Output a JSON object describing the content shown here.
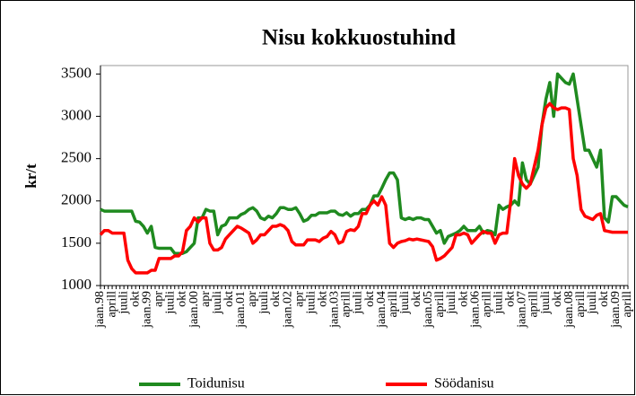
{
  "chart_data": {
    "type": "line",
    "title": "Nisu kokkuostuhind",
    "y_label": "kr/t",
    "categories": [
      "jaan.98",
      null,
      null,
      "aprill",
      null,
      null,
      "juuli",
      null,
      null,
      "okt",
      null,
      null,
      "jaan.99",
      null,
      null,
      "apr",
      null,
      null,
      "juuli",
      null,
      null,
      "okt",
      null,
      null,
      "jaan.00",
      null,
      null,
      "apr",
      null,
      null,
      "juuli",
      null,
      null,
      "okt",
      null,
      null,
      "jaan.01",
      null,
      null,
      "apr",
      null,
      null,
      "juuli",
      null,
      null,
      "okt",
      null,
      null,
      "jaan.02",
      null,
      null,
      "apr",
      null,
      null,
      "juuli",
      null,
      null,
      "okt",
      null,
      null,
      "jaan.03",
      null,
      null,
      "aprill",
      null,
      null,
      "juuli",
      null,
      null,
      "okt",
      null,
      null,
      "jaan.04",
      null,
      null,
      "aprill",
      null,
      null,
      "juuli",
      null,
      null,
      "okt",
      null,
      null,
      "jaan.05",
      null,
      null,
      "aprill",
      null,
      null,
      "juuli",
      null,
      null,
      "okt",
      null,
      null,
      "jaan.06",
      null,
      null,
      "aprill",
      null,
      null,
      "juuli",
      null,
      null,
      "okt",
      null,
      null,
      "jaan.07",
      null,
      null,
      "aprill",
      null,
      null,
      "juuli",
      null,
      null,
      "okt",
      null,
      null,
      "jaan.08",
      null,
      null,
      "aprill",
      null,
      null,
      "juuli",
      null,
      null,
      "okt",
      null,
      null,
      "jaan.09",
      null,
      null,
      "aprill"
    ],
    "series": [
      {
        "name": "Toidunisu",
        "color": "#1f8a1f",
        "values": [
          1900,
          1880,
          1880,
          1880,
          1880,
          1880,
          1880,
          1880,
          1880,
          1760,
          1750,
          1700,
          1620,
          1700,
          1450,
          1440,
          1440,
          1440,
          1440,
          1380,
          1380,
          1380,
          1400,
          1450,
          1500,
          1800,
          1800,
          1900,
          1880,
          1880,
          1600,
          1700,
          1720,
          1800,
          1800,
          1800,
          1840,
          1860,
          1900,
          1920,
          1880,
          1800,
          1780,
          1820,
          1800,
          1850,
          1920,
          1920,
          1900,
          1900,
          1920,
          1850,
          1760,
          1780,
          1830,
          1830,
          1860,
          1860,
          1860,
          1880,
          1880,
          1840,
          1830,
          1860,
          1820,
          1850,
          1850,
          1900,
          1900,
          1950,
          2060,
          2060,
          2150,
          2250,
          2330,
          2330,
          2250,
          1800,
          1780,
          1800,
          1780,
          1800,
          1800,
          1780,
          1780,
          1700,
          1620,
          1650,
          1500,
          1580,
          1600,
          1620,
          1650,
          1700,
          1650,
          1650,
          1650,
          1700,
          1620,
          1650,
          1640,
          1600,
          1950,
          1900,
          1930,
          1950,
          2000,
          1950,
          2450,
          2250,
          2200,
          2300,
          2400,
          2900,
          3200,
          3400,
          3000,
          3500,
          3450,
          3400,
          3380,
          3500,
          3200,
          2900,
          2600,
          2600,
          2500,
          2400,
          2600,
          1800,
          1750,
          2050,
          2050,
          2000,
          1950,
          1930
        ]
      },
      {
        "name": "Söödanisu",
        "color": "#ff0000",
        "values": [
          1600,
          1650,
          1650,
          1620,
          1620,
          1620,
          1620,
          1300,
          1200,
          1150,
          1150,
          1150,
          1150,
          1180,
          1180,
          1320,
          1320,
          1320,
          1320,
          1350,
          1350,
          1400,
          1650,
          1700,
          1800,
          1750,
          1800,
          1800,
          1500,
          1420,
          1420,
          1450,
          1550,
          1600,
          1650,
          1700,
          1680,
          1650,
          1620,
          1500,
          1540,
          1600,
          1600,
          1650,
          1700,
          1700,
          1720,
          1700,
          1650,
          1520,
          1480,
          1480,
          1480,
          1540,
          1540,
          1540,
          1520,
          1560,
          1580,
          1640,
          1600,
          1500,
          1520,
          1640,
          1660,
          1650,
          1700,
          1850,
          1850,
          1950,
          2000,
          1950,
          2050,
          1950,
          1500,
          1450,
          1500,
          1520,
          1530,
          1550,
          1540,
          1550,
          1540,
          1530,
          1520,
          1460,
          1300,
          1320,
          1350,
          1400,
          1450,
          1600,
          1600,
          1620,
          1600,
          1500,
          1550,
          1600,
          1640,
          1620,
          1620,
          1500,
          1600,
          1620,
          1620,
          2000,
          2500,
          2300,
          2200,
          2150,
          2200,
          2400,
          2600,
          2900,
          3100,
          3150,
          3100,
          3080,
          3100,
          3100,
          3080,
          2500,
          2300,
          1900,
          1820,
          1800,
          1780,
          1830,
          1850,
          1650,
          1640,
          1630,
          1630,
          1630,
          1630,
          1630
        ]
      }
    ],
    "ylim": [
      1000,
      3600
    ],
    "yticks": [
      1000,
      1500,
      2000,
      2500,
      3000,
      3500
    ],
    "grid": false,
    "legend": "bottom"
  }
}
